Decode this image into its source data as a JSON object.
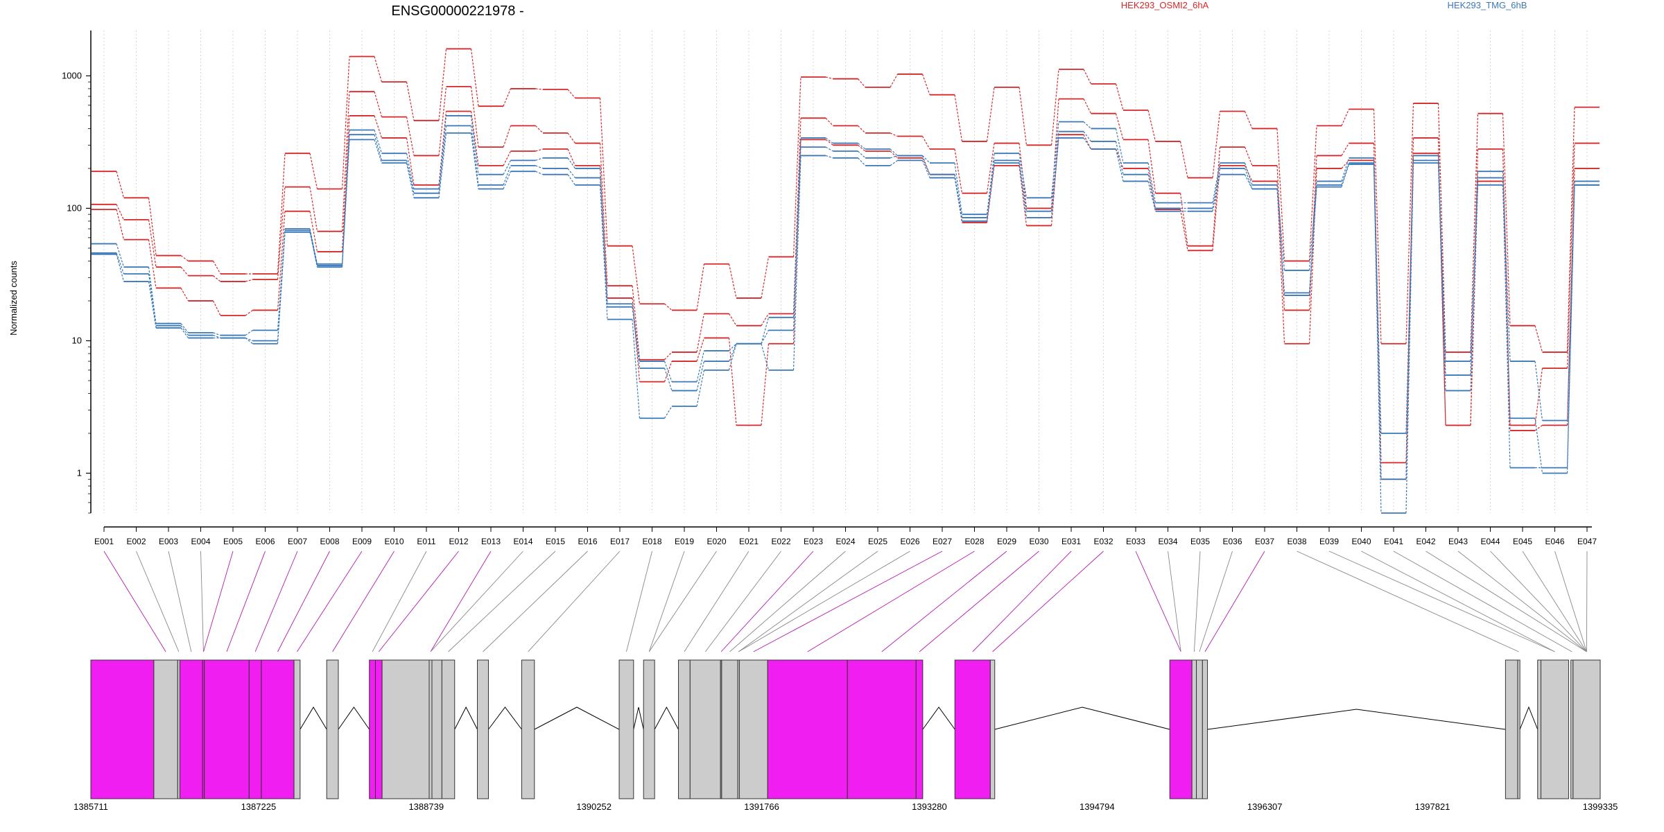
{
  "chart_data": {
    "type": "line",
    "title": "ENSG00000221978 -",
    "ylabel": "Normalized counts",
    "xlabel": "",
    "yscale": "log",
    "ylim": [
      0.5,
      2200
    ],
    "yticks": [
      1,
      10,
      100,
      1000
    ],
    "ytick_labels": [
      "1",
      "10",
      "100",
      "1000"
    ],
    "categories": [
      "E001",
      "E002",
      "E003",
      "E004",
      "E005",
      "E006",
      "E007",
      "E008",
      "E009",
      "E010",
      "E011",
      "E012",
      "E013",
      "E014",
      "E015",
      "E016",
      "E017",
      "E018",
      "E019",
      "E020",
      "E021",
      "E022",
      "E023",
      "E024",
      "E025",
      "E026",
      "E027",
      "E028",
      "E029",
      "E030",
      "E031",
      "E032",
      "E033",
      "E034",
      "E035",
      "E036",
      "E037",
      "E038",
      "E039",
      "E040",
      "E041",
      "E042",
      "E043",
      "E044",
      "E045",
      "E046",
      "E047"
    ],
    "legend": [
      {
        "name": "HEK293_OSMI2_6hA",
        "color": "#d62728"
      },
      {
        "name": "HEK293_TMG_6hB",
        "color": "#3a78b8"
      }
    ],
    "series": [
      {
        "name": "HEK293_OSMI2_6hA",
        "color": "#d62728",
        "values": [
          190,
          120,
          44,
          40,
          32,
          32,
          260,
          140,
          1400,
          900,
          460,
          1600,
          590,
          800,
          790,
          680,
          52,
          19,
          17,
          38,
          21,
          43,
          980,
          950,
          820,
          1030,
          720,
          320,
          820,
          300,
          1120,
          870,
          550,
          320,
          170,
          540,
          400,
          40,
          420,
          560,
          9.5,
          620,
          8.2,
          520,
          13,
          8.2,
          580
        ]
      },
      {
        "name": "HEK293_OSMI2_6hA",
        "color": "#d62728",
        "values": [
          107,
          82,
          36,
          31,
          28,
          29,
          145,
          67,
          760,
          490,
          250,
          830,
          290,
          420,
          370,
          310,
          26,
          7.2,
          8.2,
          16,
          13,
          16,
          480,
          420,
          370,
          350,
          280,
          130,
          310,
          100,
          670,
          520,
          330,
          130,
          52,
          290,
          210,
          17,
          250,
          310,
          1.2,
          340,
          2.3,
          280,
          2.3,
          6.2,
          310
        ]
      },
      {
        "name": "HEK293_OSMI2_6hA",
        "color": "#d62728",
        "values": [
          98,
          58,
          25,
          20,
          15.5,
          17,
          95,
          47,
          500,
          340,
          150,
          540,
          210,
          270,
          280,
          210,
          21,
          4.9,
          7,
          10.5,
          2.3,
          9.5,
          330,
          300,
          270,
          240,
          180,
          78,
          210,
          74,
          360,
          280,
          200,
          98,
          48,
          210,
          160,
          9.5,
          200,
          230,
          0.9,
          260,
          2.3,
          160,
          2.1,
          2.3,
          200
        ]
      },
      {
        "name": "HEK293_TMG_6hB",
        "color": "#3a78b8",
        "values": [
          54,
          36,
          13.5,
          11.5,
          11,
          12,
          70,
          38,
          390,
          260,
          140,
          500,
          180,
          230,
          240,
          200,
          19,
          7,
          4.9,
          8.4,
          9.5,
          15,
          340,
          310,
          280,
          250,
          220,
          90,
          260,
          120,
          450,
          400,
          220,
          110,
          110,
          220,
          150,
          34,
          160,
          240,
          2,
          250,
          7,
          190,
          7,
          2.5,
          150
        ]
      },
      {
        "name": "HEK293_TMG_6hB",
        "color": "#3a78b8",
        "values": [
          46,
          32,
          13,
          11,
          10.5,
          10,
          68,
          37,
          360,
          230,
          130,
          420,
          150,
          210,
          200,
          170,
          18,
          6.2,
          4.2,
          7,
          9.5,
          12,
          290,
          270,
          240,
          250,
          180,
          85,
          230,
          95,
          380,
          320,
          180,
          100,
          100,
          200,
          140,
          23,
          150,
          220,
          0.5,
          230,
          5.5,
          170,
          1.1,
          1.1,
          160
        ]
      },
      {
        "name": "HEK293_TMG_6hB",
        "color": "#3a78b8",
        "values": [
          45,
          28,
          12.5,
          10.5,
          10.5,
          9.5,
          66,
          36,
          330,
          220,
          120,
          370,
          140,
          190,
          180,
          150,
          14.5,
          2.6,
          3.2,
          6,
          9.5,
          6,
          250,
          240,
          210,
          230,
          170,
          80,
          220,
          85,
          340,
          280,
          160,
          95,
          95,
          180,
          140,
          22,
          145,
          215,
          0.9,
          220,
          4.2,
          150,
          2.6,
          1.0,
          150
        ]
      }
    ],
    "gene_model": {
      "coordinate_ticks": [
        "1385711",
        "1387225",
        "1388739",
        "1390252",
        "1391766",
        "1393280",
        "1394794",
        "1396307",
        "1397821",
        "1399335"
      ],
      "exons": [
        {
          "id": "E001",
          "start": 1385711,
          "end": 1386280,
          "highlight": true
        },
        {
          "id": "E002",
          "start": 1386280,
          "end": 1386495,
          "highlight": false
        },
        {
          "id": "E003",
          "start": 1386495,
          "end": 1386515,
          "highlight": false
        },
        {
          "id": "E004",
          "start": 1386515,
          "end": 1386720,
          "highlight": true
        },
        {
          "id": "E005",
          "start": 1386720,
          "end": 1386735,
          "highlight": true
        },
        {
          "id": "E006",
          "start": 1386735,
          "end": 1387140,
          "highlight": true
        },
        {
          "id": "E007",
          "start": 1387140,
          "end": 1387250,
          "highlight": true
        },
        {
          "id": "E008",
          "start": 1387250,
          "end": 1387545,
          "highlight": true
        },
        {
          "id": "E009",
          "start": 1387545,
          "end": 1387600,
          "highlight": false
        },
        {
          "id": "E010",
          "start": 1387840,
          "end": 1387945,
          "highlight": false
        },
        {
          "id": "E011",
          "start": 1388225,
          "end": 1388280,
          "highlight": true
        },
        {
          "id": "E012",
          "start": 1388280,
          "end": 1388340,
          "highlight": true
        },
        {
          "id": "E013",
          "start": 1388340,
          "end": 1388765,
          "highlight": false
        },
        {
          "id": "E014",
          "start": 1388765,
          "end": 1388790,
          "highlight": false
        },
        {
          "id": "E015",
          "start": 1388790,
          "end": 1388880,
          "highlight": false
        },
        {
          "id": "E016",
          "start": 1388880,
          "end": 1388995,
          "highlight": false
        },
        {
          "id": "E017",
          "start": 1389200,
          "end": 1389300,
          "highlight": false
        },
        {
          "id": "E018",
          "start": 1389600,
          "end": 1389715,
          "highlight": false
        },
        {
          "id": "E019",
          "start": 1390480,
          "end": 1390610,
          "highlight": false
        },
        {
          "id": "E020",
          "start": 1390700,
          "end": 1390800,
          "highlight": false
        },
        {
          "id": "E021",
          "start": 1391015,
          "end": 1391120,
          "highlight": false
        },
        {
          "id": "E022",
          "start": 1391120,
          "end": 1391395,
          "highlight": false
        },
        {
          "id": "E023",
          "start": 1391395,
          "end": 1391405,
          "highlight": false
        },
        {
          "id": "E024",
          "start": 1391405,
          "end": 1391550,
          "highlight": false
        },
        {
          "id": "E025",
          "start": 1391550,
          "end": 1391565,
          "highlight": false
        },
        {
          "id": "E026",
          "start": 1391565,
          "end": 1391820,
          "highlight": false
        },
        {
          "id": "E027",
          "start": 1391820,
          "end": 1392540,
          "highlight": true
        },
        {
          "id": "E028",
          "start": 1392540,
          "end": 1393160,
          "highlight": true
        },
        {
          "id": "E029",
          "start": 1393160,
          "end": 1393220,
          "highlight": true
        },
        {
          "id": "E030",
          "start": 1393510,
          "end": 1393830,
          "highlight": true
        },
        {
          "id": "E031",
          "start": 1393830,
          "end": 1393870,
          "highlight": false
        },
        {
          "id": "E032",
          "start": 1395450,
          "end": 1395650,
          "highlight": true
        },
        {
          "id": "E033",
          "start": 1395650,
          "end": 1395690,
          "highlight": false
        },
        {
          "id": "E034",
          "start": 1395690,
          "end": 1395745,
          "highlight": false
        },
        {
          "id": "E035",
          "start": 1395745,
          "end": 1395790,
          "highlight": false
        },
        {
          "id": "E036",
          "start": 1398480,
          "end": 1398590,
          "highlight": false
        },
        {
          "id": "E037",
          "start": 1398590,
          "end": 1398610,
          "highlight": false
        },
        {
          "id": "E038",
          "start": 1398770,
          "end": 1398800,
          "highlight": false
        },
        {
          "id": "E039",
          "start": 1398800,
          "end": 1399050,
          "highlight": false
        },
        {
          "id": "E040",
          "start": 1399070,
          "end": 1399090,
          "highlight": false
        },
        {
          "id": "E041",
          "start": 1399090,
          "end": 1399335,
          "highlight": false
        }
      ],
      "lines_to_exons": [
        1,
        2,
        3,
        4,
        4,
        5,
        6,
        7,
        8,
        9,
        10,
        11,
        13,
        13,
        15,
        16,
        17,
        18,
        19,
        19,
        20,
        21,
        22,
        23,
        24,
        24,
        25,
        26,
        27,
        28,
        29,
        30,
        31,
        31,
        32,
        33,
        34,
        36,
        38,
        38,
        39,
        40,
        41,
        41,
        41,
        41,
        41
      ],
      "highlight_lines": [
        true,
        false,
        false,
        false,
        true,
        true,
        true,
        true,
        true,
        true,
        false,
        true,
        true,
        false,
        false,
        false,
        false,
        false,
        false,
        false,
        false,
        false,
        true,
        false,
        false,
        false,
        true,
        true,
        true,
        true,
        true,
        true,
        true,
        false,
        false,
        false,
        true,
        false,
        false,
        false,
        false,
        false,
        false,
        false,
        false,
        false,
        false
      ]
    }
  }
}
